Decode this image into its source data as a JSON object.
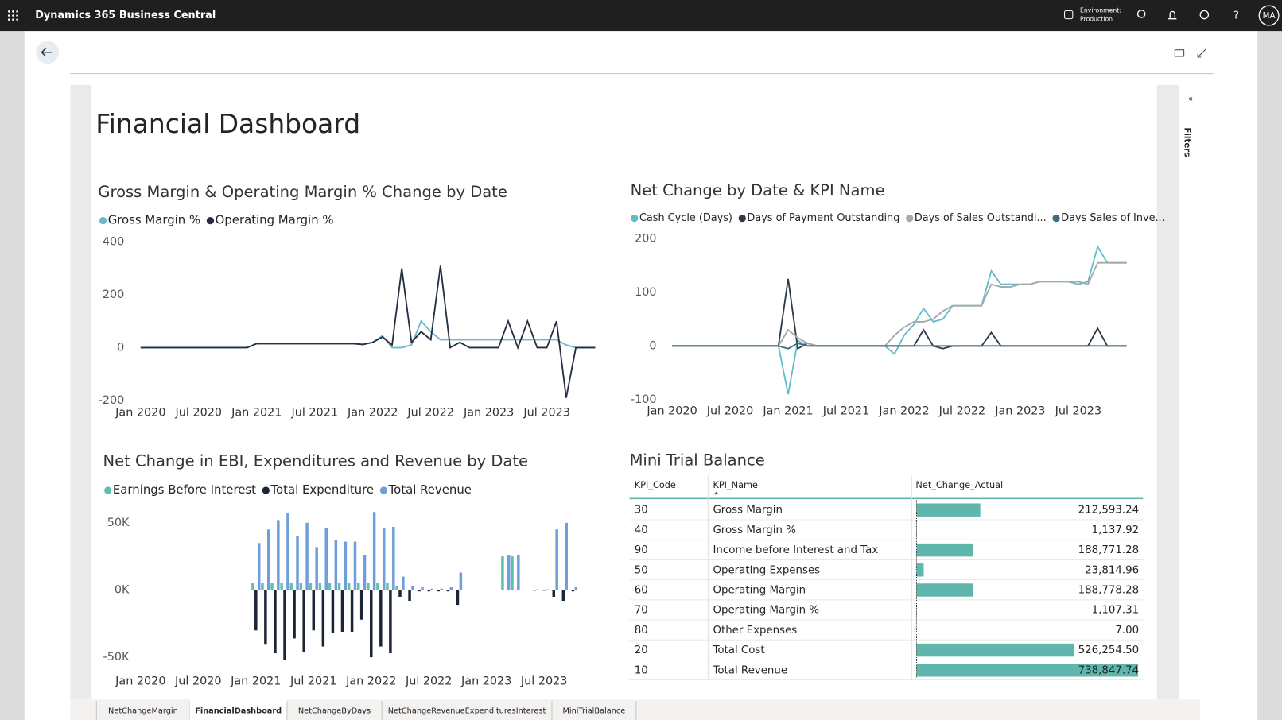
{
  "app": {
    "title": "Dynamics 365 Business Central",
    "environment_label": "Environment:",
    "environment": "Production",
    "user": "MA"
  },
  "page": {
    "title": "Financial Dashboard",
    "filters": "Filters",
    "tabs": [
      "NetChangeMargin",
      "FinancialDashboard",
      "NetChangeByDays",
      "NetChangeRevenueExpendituresInterest",
      "MiniTrialBalance"
    ]
  },
  "chart_data": [
    {
      "type": "line",
      "title": "Gross Margin & Operating Margin % Change by Date",
      "categories": [
        "Jan 2020",
        null,
        null,
        null,
        null,
        null,
        "Jul 2020",
        null,
        null,
        null,
        null,
        null,
        "Jan 2021",
        null,
        null,
        null,
        null,
        null,
        "Jul 2021",
        null,
        null,
        null,
        null,
        null,
        "Jan 2022",
        null,
        null,
        null,
        null,
        null,
        "Jul 2022",
        null,
        null,
        null,
        null,
        null,
        "Jan 2023",
        null,
        null,
        null,
        null,
        null,
        "Jul 2023",
        null,
        null,
        null,
        null,
        null
      ],
      "series": [
        {
          "name": "Gross Margin %",
          "color": "#6bb9c9",
          "values": [
            0,
            0,
            0,
            0,
            0,
            0,
            0,
            0,
            0,
            0,
            0,
            0,
            15,
            15,
            15,
            15,
            15,
            15,
            15,
            15,
            15,
            15,
            15,
            12,
            20,
            45,
            0,
            0,
            10,
            100,
            60,
            30,
            30,
            30,
            30,
            30,
            30,
            30,
            30,
            30,
            30,
            30,
            30,
            30,
            10,
            0,
            0,
            0
          ]
        },
        {
          "name": "Operating Margin %",
          "color": "#252f3f",
          "values": [
            0,
            0,
            0,
            0,
            0,
            0,
            0,
            0,
            0,
            0,
            0,
            0,
            15,
            15,
            15,
            15,
            15,
            15,
            15,
            15,
            15,
            15,
            15,
            12,
            20,
            40,
            10,
            300,
            20,
            60,
            30,
            310,
            0,
            20,
            0,
            0,
            0,
            0,
            100,
            0,
            100,
            0,
            0,
            100,
            -190,
            0,
            0,
            0
          ]
        }
      ],
      "ylim": [
        -200,
        400
      ],
      "yticks": [
        -200,
        0,
        200,
        400
      ],
      "grid": false
    },
    {
      "type": "line",
      "title": "Net Change by Date & KPI Name",
      "categories": [
        "Jan 2020",
        null,
        null,
        null,
        null,
        null,
        "Jul 2020",
        null,
        null,
        null,
        null,
        null,
        "Jan 2021",
        null,
        null,
        null,
        null,
        null,
        "Jul 2021",
        null,
        null,
        null,
        null,
        null,
        "Jan 2022",
        null,
        null,
        null,
        null,
        null,
        "Jul 2022",
        null,
        null,
        null,
        null,
        null,
        "Jan 2023",
        null,
        null,
        null,
        null,
        null,
        "Jul 2023",
        null,
        null,
        null,
        null,
        null
      ],
      "series": [
        {
          "name": "Cash Cycle (Days)",
          "color": "#62bccb",
          "values": [
            0,
            0,
            0,
            0,
            0,
            0,
            0,
            0,
            0,
            0,
            0,
            0,
            -90,
            10,
            0,
            0,
            0,
            0,
            0,
            0,
            0,
            0,
            0,
            -15,
            20,
            40,
            70,
            45,
            50,
            75,
            75,
            75,
            75,
            140,
            115,
            115,
            115,
            115,
            120,
            120,
            120,
            120,
            115,
            120,
            185,
            155,
            155,
            155
          ]
        },
        {
          "name": "Days of Payment Outstanding",
          "color": "#2f3b48",
          "values": [
            0,
            0,
            0,
            0,
            0,
            0,
            0,
            0,
            0,
            0,
            0,
            0,
            125,
            -5,
            5,
            0,
            0,
            0,
            0,
            0,
            0,
            0,
            0,
            0,
            0,
            0,
            30,
            0,
            -5,
            0,
            0,
            0,
            0,
            25,
            0,
            0,
            0,
            0,
            0,
            0,
            0,
            0,
            0,
            0,
            33,
            0,
            0,
            0
          ]
        },
        {
          "name": "Days of Sales Outstandi...",
          "color": "#a8a8a8",
          "values": [
            0,
            0,
            0,
            0,
            0,
            0,
            0,
            0,
            0,
            0,
            0,
            0,
            30,
            15,
            5,
            0,
            0,
            0,
            0,
            0,
            0,
            0,
            0,
            20,
            35,
            45,
            45,
            50,
            65,
            75,
            75,
            75,
            75,
            115,
            110,
            110,
            115,
            115,
            120,
            120,
            120,
            120,
            120,
            115,
            155,
            155,
            155,
            155
          ]
        },
        {
          "name": "Days Sales of Inve...",
          "color": "#3f6e80",
          "values": [
            0,
            0,
            0,
            0,
            0,
            0,
            0,
            0,
            0,
            0,
            0,
            0,
            -5,
            5,
            0,
            0,
            0,
            0,
            0,
            0,
            0,
            0,
            0,
            0,
            0,
            0,
            0,
            0,
            0,
            0,
            0,
            0,
            0,
            0,
            0,
            0,
            0,
            0,
            0,
            0,
            0,
            0,
            0,
            0,
            0,
            0,
            0,
            0
          ]
        }
      ],
      "ylim": [
        -100,
        200
      ],
      "yticks": [
        -100,
        0,
        100,
        200
      ],
      "grid": false
    },
    {
      "type": "bar",
      "title": "Net Change in EBI, Expenditures and Revenue by Date",
      "categories": [
        "Jan 2020",
        null,
        null,
        null,
        null,
        null,
        "Jul 2020",
        null,
        null,
        null,
        null,
        null,
        "Jan 2021",
        null,
        null,
        null,
        null,
        null,
        "Jul 2021",
        null,
        null,
        null,
        null,
        null,
        "Jan 2022",
        null,
        null,
        null,
        null,
        null,
        "Jul 2022",
        null,
        null,
        null,
        null,
        null,
        "Jan 2023",
        null,
        null,
        null,
        null,
        null,
        "Jul 2023",
        null,
        null,
        null,
        null,
        null
      ],
      "series": [
        {
          "name": "Earnings Before Interest",
          "color": "#5fc0ae",
          "values": [
            0,
            0,
            0,
            0,
            0,
            0,
            0,
            0,
            0,
            0,
            0,
            0,
            5000,
            5000,
            5000,
            5000,
            5000,
            5000,
            5000,
            5000,
            5000,
            5000,
            5000,
            5000,
            5000,
            5000,
            5000,
            3000,
            0,
            0,
            0,
            0,
            0,
            0,
            0,
            0,
            0,
            0,
            25000,
            25000,
            0,
            0,
            0,
            0,
            0,
            0,
            0,
            0
          ]
        },
        {
          "name": "Total Expenditure",
          "color": "#1a2638",
          "values": [
            0,
            0,
            0,
            0,
            0,
            0,
            0,
            0,
            0,
            0,
            0,
            0,
            -30000,
            -40000,
            -47000,
            -52000,
            -36000,
            -46000,
            -30000,
            -42000,
            -32000,
            -31000,
            -31000,
            -22000,
            -50000,
            -42000,
            -47000,
            -5000,
            -8000,
            -1000,
            -1000,
            -1000,
            -1000,
            -11000,
            0,
            0,
            0,
            0,
            0,
            0,
            0,
            -500,
            -500,
            -5000,
            -8000,
            -1000,
            0,
            0
          ]
        },
        {
          "name": "Total Revenue",
          "color": "#6e9fdc",
          "values": [
            0,
            0,
            0,
            0,
            0,
            0,
            0,
            0,
            0,
            0,
            0,
            0,
            35000,
            45000,
            52000,
            57000,
            40000,
            50000,
            32000,
            46000,
            37000,
            36000,
            36000,
            26000,
            58000,
            46000,
            47000,
            10000,
            3000,
            2000,
            1000,
            1000,
            2000,
            13000,
            0,
            0,
            0,
            0,
            26000,
            26000,
            0,
            500,
            500,
            45000,
            50000,
            2000,
            0,
            0
          ]
        }
      ],
      "ylim": [
        -65000,
        65000
      ],
      "yticks": [
        {
          "value": -50000,
          "label": "-50K"
        },
        {
          "value": 0,
          "label": "0K"
        },
        {
          "value": 50000,
          "label": "50K"
        }
      ],
      "grid": false
    }
  ],
  "table": {
    "title": "Mini Trial Balance",
    "columns": [
      "KPI_Code",
      "KPI_Name",
      "Net_Change_Actual"
    ],
    "rows": [
      [
        30,
        "Gross Margin"
      ],
      [
        40,
        "Gross Margin %"
      ],
      [
        90,
        "Income before Interest and Tax"
      ],
      [
        50,
        "Operating Expenses"
      ],
      [
        60,
        "Operating Margin"
      ],
      [
        70,
        "Operating Margin %"
      ],
      [
        80,
        "Other Expenses"
      ],
      [
        20,
        "Total Cost"
      ],
      [
        10,
        "Total Revenue"
      ]
    ],
    "values": [
      212593.24,
      1137.92,
      188771.28,
      23814.96,
      188778.28,
      1107.31,
      7.0,
      526254.5,
      738847.74
    ],
    "value_labels": [
      "212,593.24",
      "1,137.92",
      "188,771.28",
      "23,814.96",
      "188,778.28",
      "1,107.31",
      "7.00",
      "526,254.50",
      "738,847.74"
    ],
    "color": "#5fb6ad"
  }
}
